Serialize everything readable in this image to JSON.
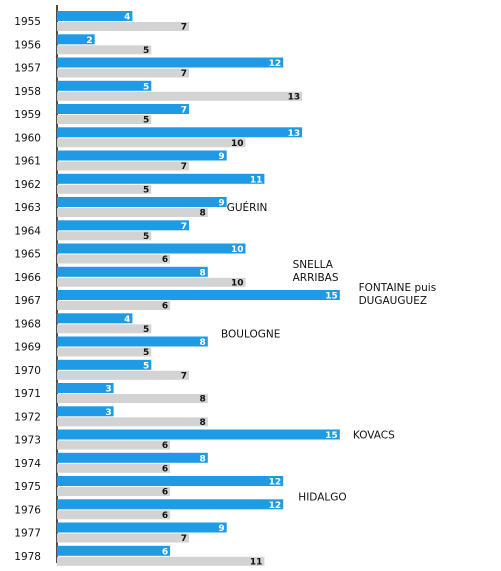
{
  "chart_data": {
    "type": "bar",
    "orientation": "horizontal",
    "categories": [
      "1955",
      "1956",
      "1957",
      "1958",
      "1959",
      "1960",
      "1961",
      "1962",
      "1963",
      "1964",
      "1965",
      "1966",
      "1967",
      "1968",
      "1969",
      "1970",
      "1971",
      "1972",
      "1973",
      "1974",
      "1975",
      "1976",
      "1977",
      "1978"
    ],
    "series": [
      {
        "color": "#1f9be6",
        "label_color": "#ffffff",
        "values": [
          4,
          2,
          12,
          5,
          7,
          13,
          9,
          11,
          9,
          7,
          10,
          8,
          15,
          4,
          8,
          5,
          3,
          3,
          15,
          8,
          12,
          12,
          9,
          6
        ]
      },
      {
        "color": "#d3d3d3",
        "label_color": "#111111",
        "values": [
          7,
          5,
          7,
          13,
          5,
          10,
          7,
          5,
          8,
          5,
          6,
          10,
          6,
          5,
          5,
          7,
          8,
          8,
          6,
          6,
          6,
          6,
          7,
          11
        ]
      }
    ],
    "xlim": [
      0,
      20
    ],
    "grid": false,
    "annotations": [
      {
        "text": "GUÉRIN",
        "category": "1963",
        "offset": "bottom",
        "x": 9
      },
      {
        "text": "SNELLA",
        "category": "1966",
        "offset": "top",
        "x": 12.5
      },
      {
        "text": "ARRIBAS",
        "category": "1966",
        "offset": "bottom",
        "x": 12.5
      },
      {
        "text": "FONTAINE puis",
        "category": "1967",
        "offset": "top",
        "x": 16
      },
      {
        "text": "DUGAUGUEZ",
        "category": "1967",
        "offset": "bottom",
        "x": 16
      },
      {
        "text": "BOULOGNE",
        "category": "1969",
        "offset": "top",
        "x": 8.7
      },
      {
        "text": "KOVACS",
        "category": "1973",
        "offset": "middle",
        "x": 15.7
      },
      {
        "text": "HIDALGO",
        "category": "1976",
        "offset": "top",
        "x": 12.8
      }
    ]
  }
}
